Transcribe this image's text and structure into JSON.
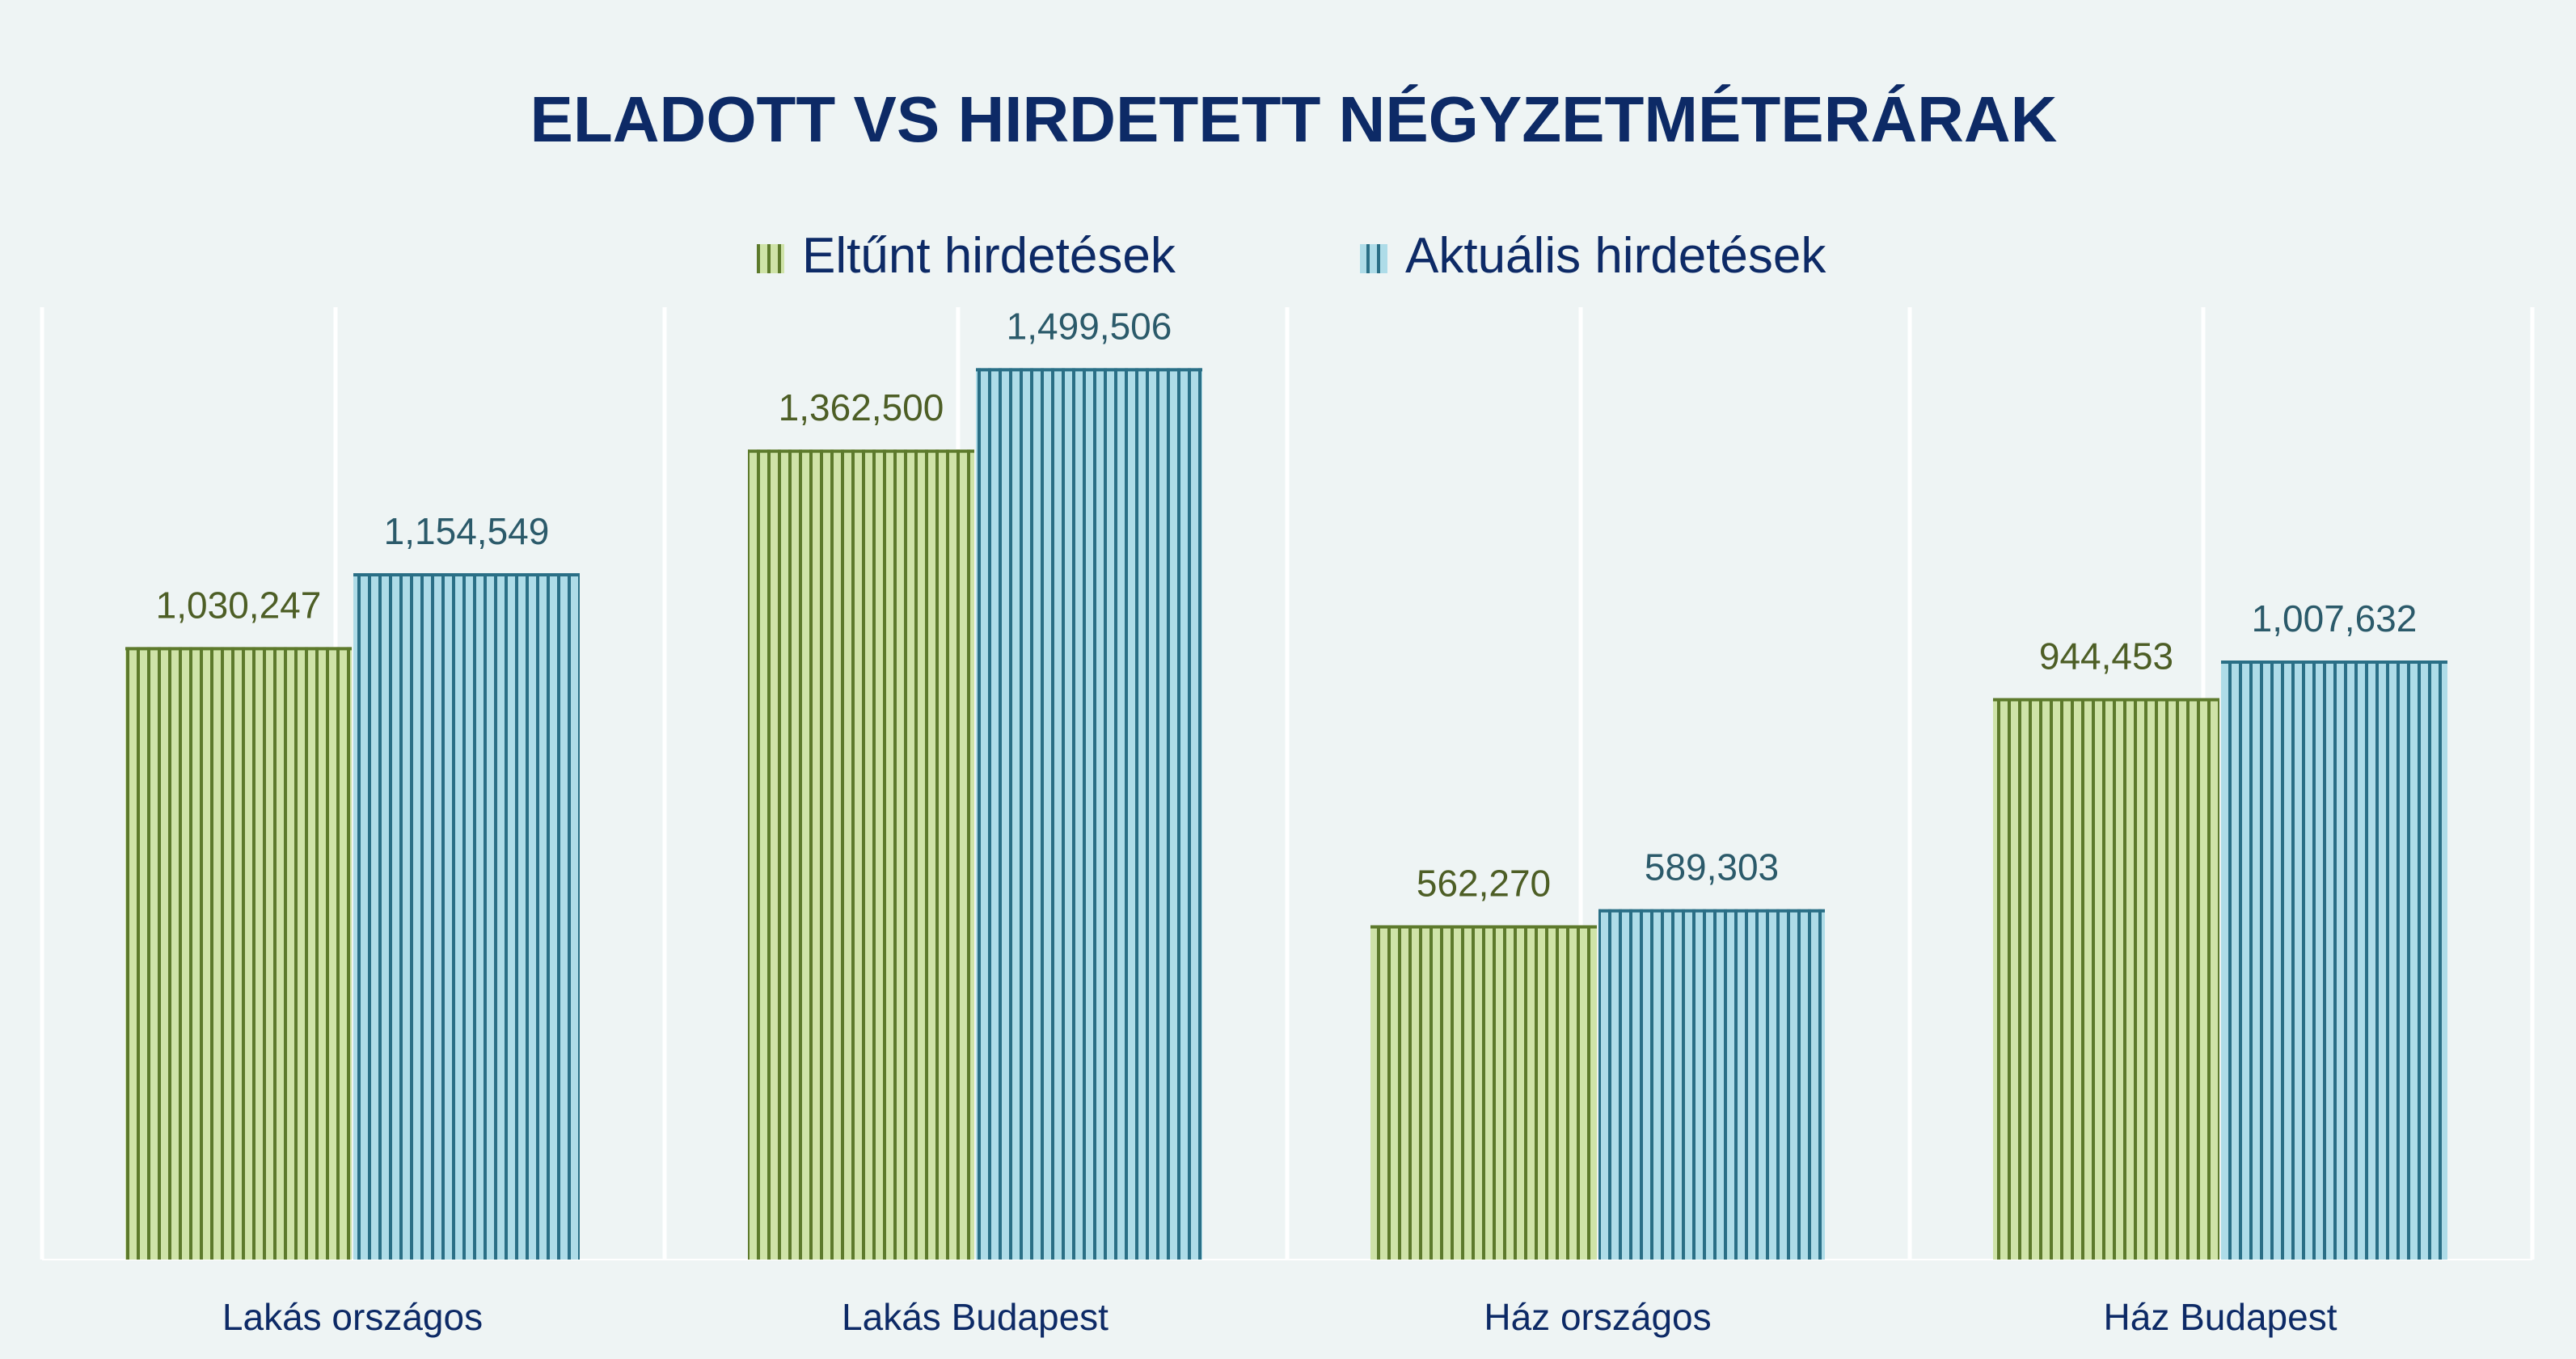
{
  "colors": {
    "background": "#eef4f4",
    "title": "#0d2a66",
    "green_fill": "#cfe3a8",
    "green_stripe": "#5d7a2c",
    "green_label": "#4d5e25",
    "blue_fill": "#aedce8",
    "blue_stripe": "#2a6f86",
    "blue_label": "#2b5a6a",
    "category_label": "#0d2a66",
    "gridline": "#ffffff"
  },
  "chart_data": {
    "type": "bar",
    "title": "ELADOTT VS HIRDETETT NÉGYZETMÉTERÁRAK",
    "xlabel": "",
    "ylabel": "",
    "ylim": [
      0,
      1600000
    ],
    "grid": true,
    "legend_position": "top-center",
    "categories": [
      "Lakás országos",
      "Lakás Budapest",
      "Ház országos",
      "Ház Budapest"
    ],
    "series": [
      {
        "name": "Eltűnt hirdetések",
        "values": [
          1030247,
          1362500,
          562270,
          944453
        ],
        "labels": [
          "1,030,247",
          "1,362,500",
          "562,270",
          "944,453"
        ],
        "color": "#cfe3a8"
      },
      {
        "name": "Aktuális hirdetések",
        "values": [
          1154549,
          1499506,
          589303,
          1007632
        ],
        "labels": [
          "1,154,549",
          "1,499,506",
          "589,303",
          "1,007,632"
        ],
        "color": "#aedce8"
      }
    ]
  }
}
